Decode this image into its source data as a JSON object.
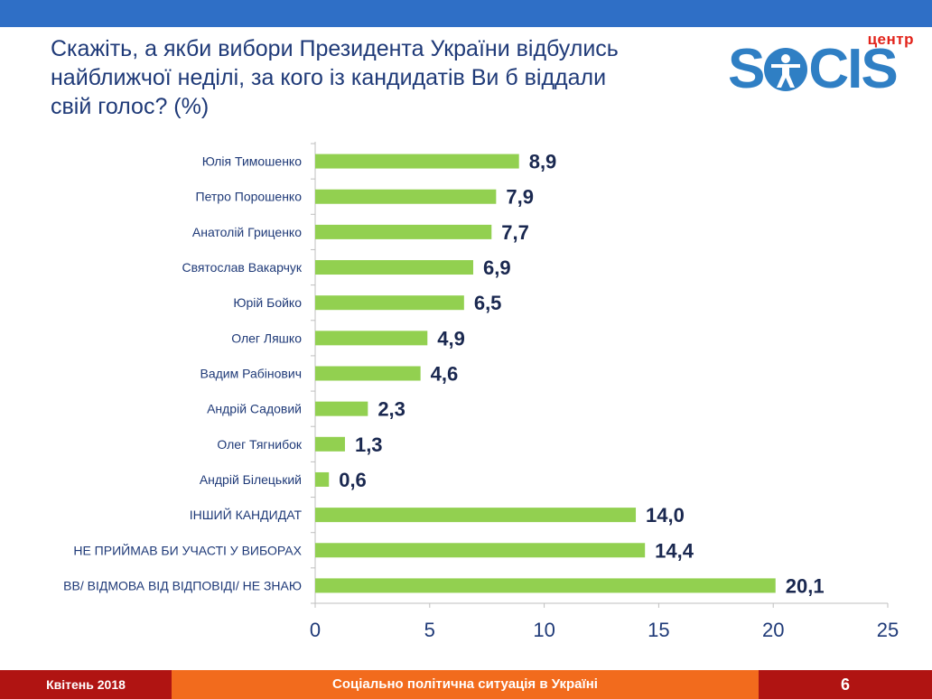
{
  "header": {
    "title_lines": [
      "Скажіть, а якби вибори Президента України відбулись",
      "найближчої неділі, за кого із кандидатів Ви б віддали",
      "свій голос? (%)"
    ]
  },
  "logo": {
    "small_text": "центр",
    "text_left": "S",
    "text_right": "CIS"
  },
  "colors": {
    "bar": "#92d050",
    "title": "#1f3a78",
    "value": "#1a2850",
    "label": "#1f3a78",
    "axis": "#1f3a78"
  },
  "chart_data": {
    "type": "bar",
    "orientation": "horizontal",
    "categories": [
      "Юлія Тимошенко",
      "Петро Порошенко",
      "Анатолій Гриценко",
      "Святослав Вакарчук",
      "Юрій Бойко",
      "Олег Ляшко",
      "Вадим Рабінович",
      "Андрій Садовий",
      "Олег Тягнибок",
      "Андрій Білецький",
      "ІНШИЙ КАНДИДАТ",
      "НЕ ПРИЙМАВ БИ УЧАСТІ У ВИБОРАХ",
      "ВВ/ ВІДМОВА ВІД ВІДПОВІДІ/ НЕ ЗНАЮ"
    ],
    "values": [
      8.9,
      7.9,
      7.7,
      6.9,
      6.5,
      4.9,
      4.6,
      2.3,
      1.3,
      0.6,
      14.0,
      14.4,
      20.1
    ],
    "value_labels": [
      "8,9",
      "7,9",
      "7,7",
      "6,9",
      "6,5",
      "4,9",
      "4,6",
      "2,3",
      "1,3",
      "0,6",
      "14,0",
      "14,4",
      "20,1"
    ],
    "xlim": [
      0,
      25
    ],
    "xticks": [
      0,
      5,
      10,
      15,
      20,
      25
    ],
    "xtick_labels": [
      "0",
      "5",
      "10",
      "15",
      "20",
      "25"
    ],
    "title": "",
    "xlabel": "",
    "ylabel": "",
    "grid": false,
    "legend": "none"
  },
  "footer": {
    "left": "Квітень 2018",
    "center": "Соціально політична ситуація в Україні",
    "page": "6"
  }
}
